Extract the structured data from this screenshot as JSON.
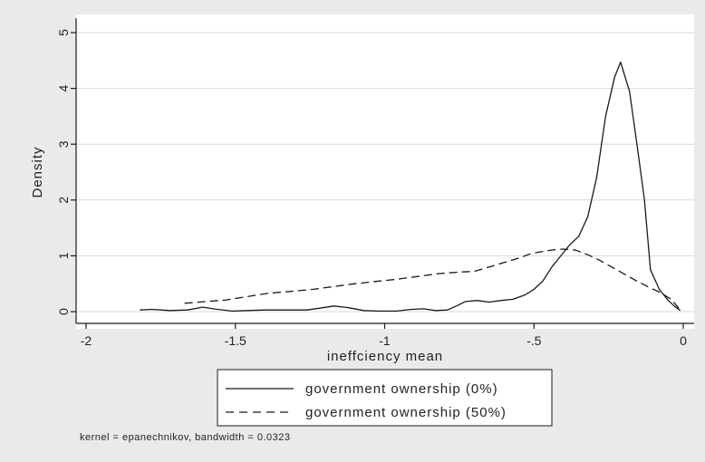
{
  "chart_data": {
    "type": "line",
    "title": "",
    "xlabel": "ineffciency mean",
    "ylabel": "Density",
    "xlim": [
      -2.0,
      0.0
    ],
    "ylim": [
      0,
      5
    ],
    "x_ticks": [
      -2,
      -1.5,
      -1,
      -0.5,
      0
    ],
    "x_tick_labels": [
      "-2",
      "-1.5",
      "-1",
      "-.5",
      "0"
    ],
    "y_ticks": [
      0,
      1,
      2,
      3,
      4,
      5
    ],
    "y_tick_labels": [
      "0",
      "1",
      "2",
      "3",
      "4",
      "5"
    ],
    "grid": true,
    "legend_position": "bottom",
    "series": [
      {
        "name": "government ownership (0%)",
        "style": "solid",
        "color": "#1a1a1a",
        "points": [
          [
            -1.82,
            0.03
          ],
          [
            -1.78,
            0.04
          ],
          [
            -1.72,
            0.02
          ],
          [
            -1.66,
            0.03
          ],
          [
            -1.61,
            0.08
          ],
          [
            -1.56,
            0.04
          ],
          [
            -1.51,
            0.01
          ],
          [
            -1.46,
            0.02
          ],
          [
            -1.4,
            0.03
          ],
          [
            -1.33,
            0.03
          ],
          [
            -1.26,
            0.03
          ],
          [
            -1.22,
            0.06
          ],
          [
            -1.17,
            0.1
          ],
          [
            -1.12,
            0.07
          ],
          [
            -1.07,
            0.02
          ],
          [
            -1.02,
            0.01
          ],
          [
            -0.96,
            0.01
          ],
          [
            -0.91,
            0.04
          ],
          [
            -0.87,
            0.05
          ],
          [
            -0.83,
            0.02
          ],
          [
            -0.79,
            0.03
          ],
          [
            -0.76,
            0.1
          ],
          [
            -0.73,
            0.18
          ],
          [
            -0.69,
            0.2
          ],
          [
            -0.65,
            0.17
          ],
          [
            -0.61,
            0.2
          ],
          [
            -0.57,
            0.22
          ],
          [
            -0.53,
            0.3
          ],
          [
            -0.5,
            0.4
          ],
          [
            -0.47,
            0.55
          ],
          [
            -0.44,
            0.8
          ],
          [
            -0.41,
            1.0
          ],
          [
            -0.38,
            1.2
          ],
          [
            -0.35,
            1.35
          ],
          [
            -0.32,
            1.7
          ],
          [
            -0.29,
            2.4
          ],
          [
            -0.26,
            3.5
          ],
          [
            -0.23,
            4.2
          ],
          [
            -0.21,
            4.47
          ],
          [
            -0.18,
            3.95
          ],
          [
            -0.155,
            3.0
          ],
          [
            -0.13,
            2.0
          ],
          [
            -0.11,
            0.75
          ],
          [
            -0.08,
            0.4
          ],
          [
            -0.05,
            0.2
          ],
          [
            -0.03,
            0.1
          ],
          [
            -0.01,
            0.02
          ]
        ]
      },
      {
        "name": "government ownership (50%)",
        "style": "dashed",
        "color": "#1a1a1a",
        "points": [
          [
            -1.67,
            0.15
          ],
          [
            -1.6,
            0.18
          ],
          [
            -1.53,
            0.21
          ],
          [
            -1.46,
            0.27
          ],
          [
            -1.39,
            0.33
          ],
          [
            -1.32,
            0.36
          ],
          [
            -1.24,
            0.4
          ],
          [
            -1.17,
            0.45
          ],
          [
            -1.1,
            0.5
          ],
          [
            -1.03,
            0.54
          ],
          [
            -0.96,
            0.58
          ],
          [
            -0.89,
            0.63
          ],
          [
            -0.82,
            0.68
          ],
          [
            -0.75,
            0.71
          ],
          [
            -0.7,
            0.72
          ],
          [
            -0.65,
            0.8
          ],
          [
            -0.6,
            0.88
          ],
          [
            -0.55,
            0.96
          ],
          [
            -0.51,
            1.04
          ],
          [
            -0.47,
            1.08
          ],
          [
            -0.43,
            1.11
          ],
          [
            -0.4,
            1.12
          ],
          [
            -0.36,
            1.1
          ],
          [
            -0.32,
            1.02
          ],
          [
            -0.28,
            0.92
          ],
          [
            -0.24,
            0.8
          ],
          [
            -0.2,
            0.68
          ],
          [
            -0.16,
            0.56
          ],
          [
            -0.12,
            0.45
          ],
          [
            -0.08,
            0.35
          ],
          [
            -0.04,
            0.22
          ],
          [
            -0.01,
            0.03
          ]
        ]
      }
    ]
  },
  "footnote": "kernel = epanechnikov, bandwidth = 0.0323",
  "colors": {
    "background": "#eaeaea",
    "plot_area": "#ffffff",
    "grid": "#d9d9d9",
    "ink": "#1a1a1a"
  }
}
